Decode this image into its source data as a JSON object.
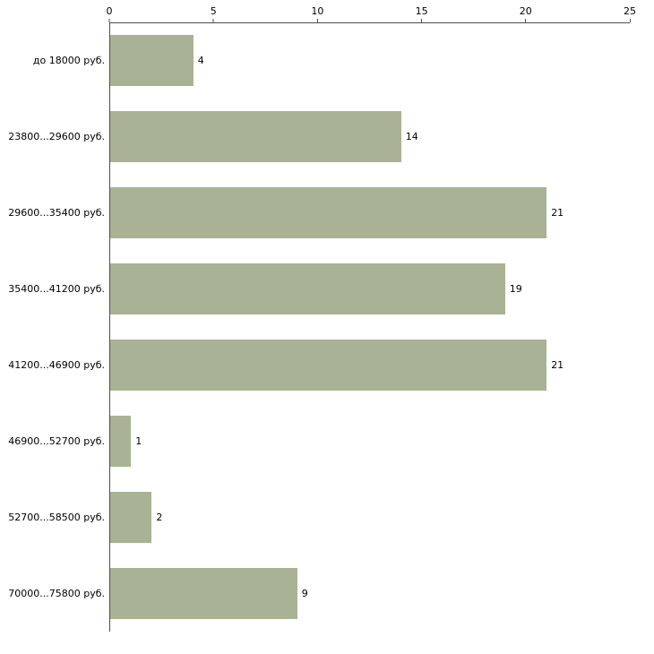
{
  "chart_data": {
    "type": "bar",
    "orientation": "horizontal",
    "title": "",
    "xlabel": "",
    "ylabel": "",
    "categories": [
      "до 18000 руб.",
      "23800...29600 руб.",
      "29600...35400 руб.",
      "35400...41200 руб.",
      "41200...46900 руб.",
      "46900...52700 руб.",
      "52700...58500 руб.",
      "70000...75800 руб."
    ],
    "values": [
      4,
      14,
      21,
      19,
      21,
      1,
      2,
      9
    ],
    "xlim": [
      0,
      25
    ],
    "x_ticks": [
      0,
      5,
      10,
      15,
      20,
      25
    ],
    "grid": false,
    "legend": false,
    "value_labels_shown": true,
    "axis_position": "top",
    "bar_color": "#a9b294",
    "axis_color": "#4d4d4d",
    "text_color": "#000000",
    "background_color": "#ffffff"
  }
}
